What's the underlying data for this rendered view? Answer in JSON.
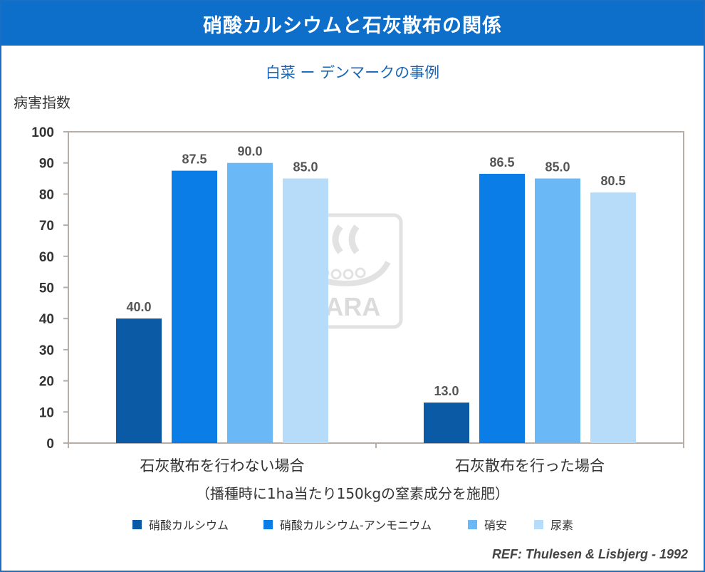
{
  "header": {
    "title": "硝酸カルシウムと石灰散布の関係"
  },
  "chart_data": {
    "type": "bar",
    "title": "白菜 ー デンマークの事例",
    "ylabel": "病害指数",
    "ylim": [
      0,
      100
    ],
    "yticks": [
      "0",
      "10",
      "20",
      "30",
      "40",
      "50",
      "60",
      "70",
      "80",
      "90",
      "100"
    ],
    "categories": [
      "石灰散布を行わない場合",
      "石灰散布を行った場合"
    ],
    "xnote": "（播種時に1ha当たり150kgの窒素成分を施肥）",
    "series": [
      {
        "name": "硝酸カルシウム",
        "color": "#0a5aa6",
        "values": [
          40.0,
          13.0
        ],
        "labels": [
          "40.0",
          "13.0"
        ]
      },
      {
        "name": "硝酸カルシウム-アンモニウム",
        "color": "#0a7ee6",
        "values": [
          87.5,
          86.5
        ],
        "labels": [
          "87.5",
          "86.5"
        ]
      },
      {
        "name": "硝安",
        "color": "#6ab8f5",
        "values": [
          90.0,
          85.0
        ],
        "labels": [
          "90.0",
          "85.0"
        ]
      },
      {
        "name": "尿素",
        "color": "#b7dcfa",
        "values": [
          85.0,
          80.5
        ],
        "labels": [
          "85.0",
          "80.5"
        ]
      }
    ],
    "grid": false,
    "legend": "bottom"
  },
  "watermark": {
    "text": "YARA"
  },
  "reference": "REF: Thulesen & Lisbjerg  - 1992"
}
